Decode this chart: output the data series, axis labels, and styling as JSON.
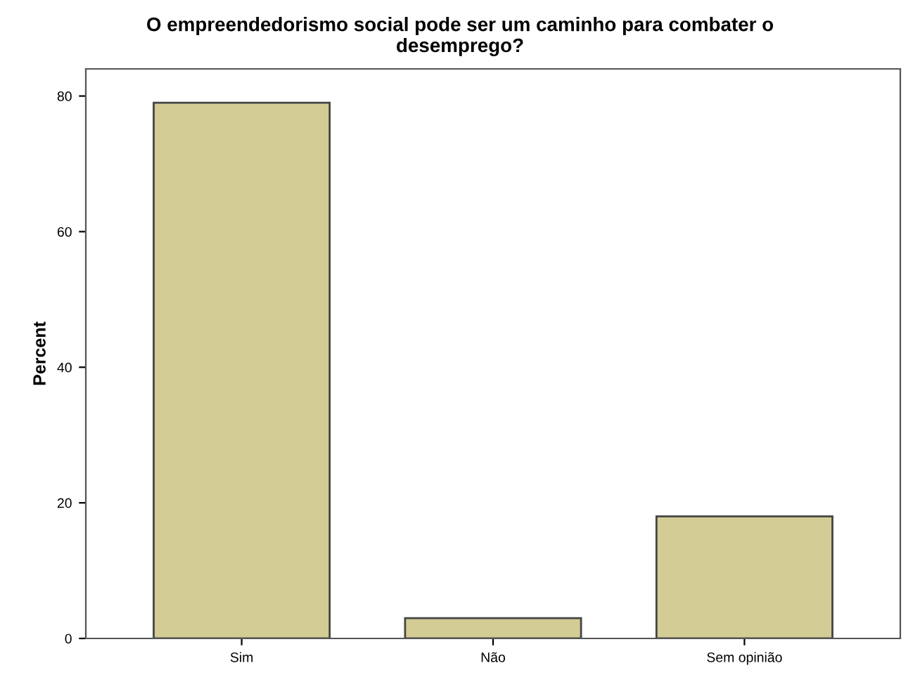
{
  "chart_data": {
    "type": "bar",
    "title": "O empreendedorismo social pode ser um caminho para combater o\ndesemprego?",
    "ylabel": "Percent",
    "categories": [
      "Sim",
      "Não",
      "Sem opinião"
    ],
    "values": [
      79,
      3,
      18
    ],
    "color": "#d3cc94",
    "ylim": [
      0,
      84
    ],
    "yticks": [
      0,
      20,
      40,
      60,
      80
    ],
    "grid": false
  }
}
